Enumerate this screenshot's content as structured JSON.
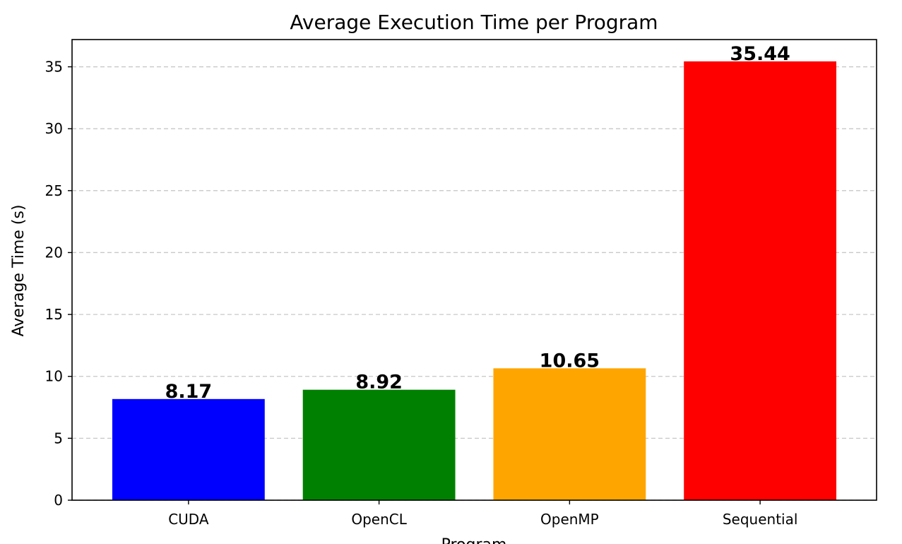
{
  "chart_data": {
    "type": "bar",
    "title": "Average Execution Time per Program",
    "xlabel": "Program",
    "ylabel": "Average Time (s)",
    "categories": [
      "CUDA",
      "OpenCL",
      "OpenMP",
      "Sequential"
    ],
    "values": [
      8.17,
      8.92,
      10.65,
      35.44
    ],
    "data_labels": [
      "8.17",
      "8.92",
      "10.65",
      "35.44"
    ],
    "colors": [
      "#0000ff",
      "#008000",
      "#ffa500",
      "#ff0000"
    ],
    "ylim": [
      0,
      37.2
    ],
    "yticks": [
      0,
      5,
      10,
      15,
      20,
      25,
      30,
      35
    ],
    "grid": {
      "y": true,
      "style": "dashed",
      "color": "#c8c8c8"
    },
    "legend": "none"
  }
}
